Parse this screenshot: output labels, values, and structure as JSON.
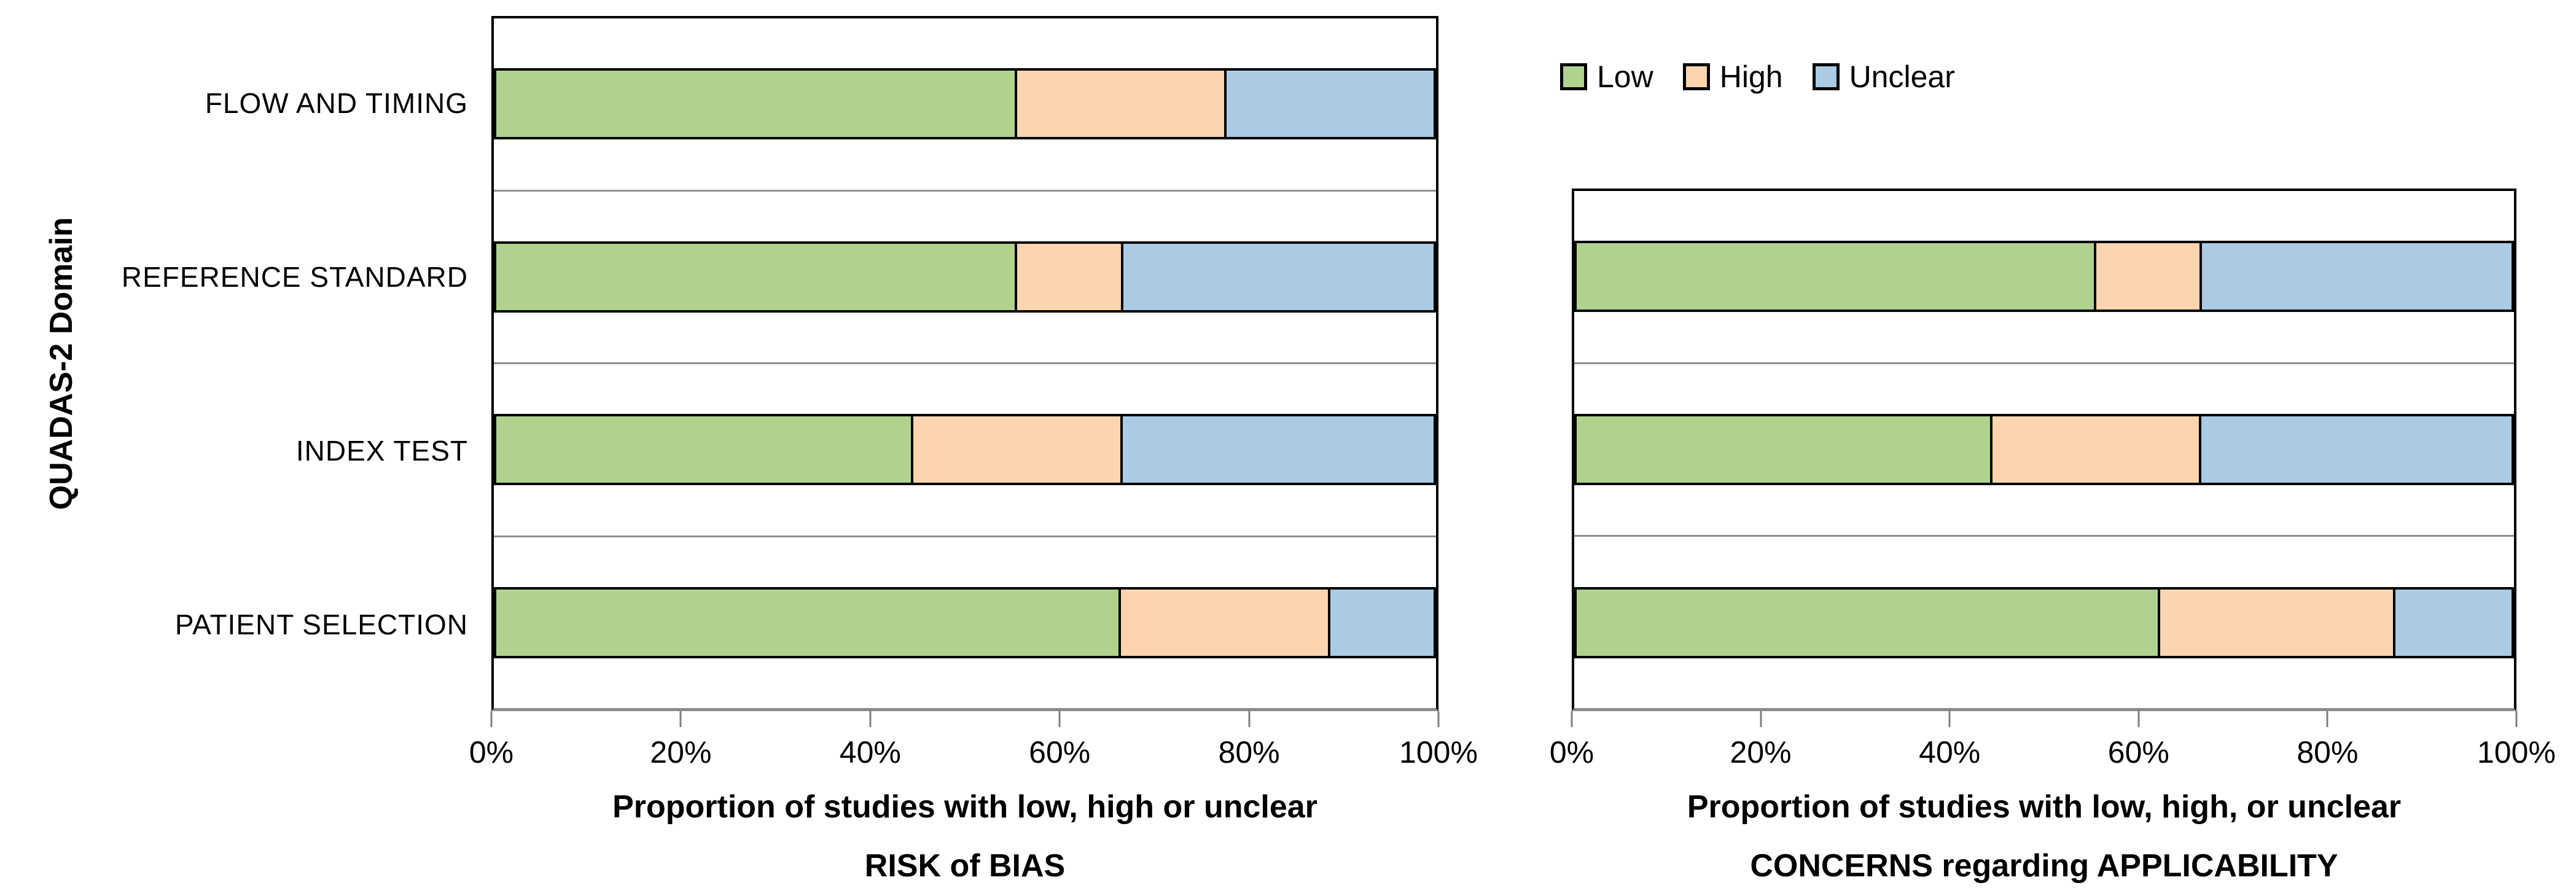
{
  "y_axis_title": "QUADAS-2 Domain",
  "legend": {
    "items": [
      {
        "label": "Low",
        "color": "#B1D28F"
      },
      {
        "label": "High",
        "color": "#FCD5B0"
      },
      {
        "label": "Unclear",
        "color": "#ABCBE5"
      }
    ]
  },
  "colors": {
    "low": "#B1D28F",
    "high": "#FCD5B0",
    "unclear": "#ABCBE5",
    "bar_border": "#000000",
    "gridline": "#8f8f8f",
    "axis_line": "#8a8a8a"
  },
  "chart_data": [
    {
      "type": "bar",
      "orientation": "horizontal",
      "stacked": true,
      "title": "Proportion of studies with low, high or unclear RISK of BIAS",
      "title_line1": "Proportion of studies with low, high or unclear",
      "title_line2": "RISK of BIAS",
      "categories": [
        "FLOW AND TIMING",
        "REFERENCE STANDARD",
        "INDEX TEST",
        "PATIENT SELECTION"
      ],
      "series": [
        {
          "name": "Low",
          "color": "#B1D28F",
          "values": [
            55.6,
            55.6,
            44.4,
            66.7
          ]
        },
        {
          "name": "High",
          "color": "#FCD5B0",
          "values": [
            22.2,
            11.1,
            22.2,
            22.2
          ]
        },
        {
          "name": "Unclear",
          "color": "#ABCBE5",
          "values": [
            22.2,
            33.3,
            33.3,
            11.1
          ]
        }
      ],
      "x_ticks": [
        "0%",
        "20%",
        "40%",
        "60%",
        "80%",
        "100%"
      ],
      "xlim": [
        0,
        100
      ],
      "show_category_labels": true,
      "legend_position": "none",
      "grid": "category separators only"
    },
    {
      "type": "bar",
      "orientation": "horizontal",
      "stacked": true,
      "title": "Proportion of studies with low, high, or unclear CONCERNS regarding APPLICABILITY",
      "title_line1": "Proportion of studies with low, high, or unclear",
      "title_line2": "CONCERNS regarding APPLICABILITY",
      "categories": [
        "REFERENCE STANDARD",
        "INDEX TEST",
        "PATIENT SELECTION"
      ],
      "series": [
        {
          "name": "Low",
          "color": "#B1D28F",
          "values": [
            55.6,
            44.4,
            62.5
          ]
        },
        {
          "name": "High",
          "color": "#FCD5B0",
          "values": [
            11.1,
            22.2,
            25.0
          ]
        },
        {
          "name": "Unclear",
          "color": "#ABCBE5",
          "values": [
            33.3,
            33.3,
            12.5
          ]
        }
      ],
      "x_ticks": [
        "0%",
        "20%",
        "40%",
        "60%",
        "80%",
        "100%"
      ],
      "xlim": [
        0,
        100
      ],
      "show_category_labels": false,
      "legend_position": "top",
      "grid": "category separators only"
    }
  ]
}
